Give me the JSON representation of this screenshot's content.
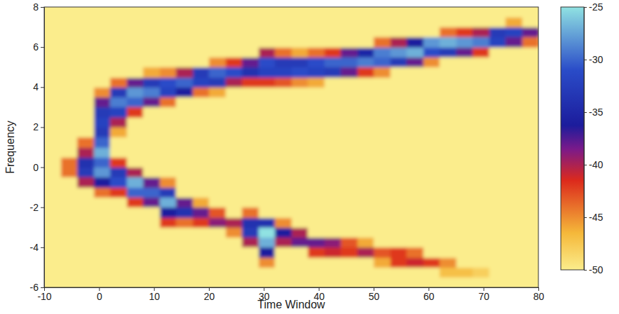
{
  "chart_data": {
    "type": "heatmap",
    "xlabel": "Time Window",
    "ylabel": "Frequency",
    "x": [
      -8.5,
      -5.5,
      -2.5,
      0.5,
      3.5,
      6.5,
      9.5,
      12.5,
      15.5,
      18.5,
      21.5,
      24.5,
      27.5,
      30.5,
      33.5,
      36.5,
      39.5,
      42.5,
      45.5,
      48.5,
      51.5,
      54.5,
      57.5,
      60.5,
      63.5,
      66.5,
      69.5,
      72.5,
      75.5,
      78.5
    ],
    "y": [
      -5.75,
      -5.25,
      -4.75,
      -4.25,
      -3.75,
      -3.25,
      -2.75,
      -2.25,
      -1.75,
      -1.25,
      -0.75,
      -0.25,
      0.25,
      0.75,
      1.25,
      1.75,
      2.25,
      2.75,
      3.25,
      3.75,
      4.25,
      4.75,
      5.25,
      5.75,
      6.25,
      6.75,
      7.25,
      7.75
    ],
    "z": [
      [
        -50,
        -50,
        -50,
        -50,
        -50,
        -50,
        -50,
        -50,
        -50,
        -50,
        -50,
        -50,
        -50,
        -50,
        -50,
        -50,
        -50,
        -50,
        -50,
        -50,
        -50,
        -50,
        -50,
        -50,
        -50,
        -50,
        -50,
        -50,
        -50,
        -50
      ],
      [
        -50,
        -50,
        -50,
        -50,
        -50,
        -50,
        -50,
        -50,
        -50,
        -50,
        -50,
        -50,
        -50,
        -50,
        -50,
        -50,
        -50,
        -50,
        -50,
        -50,
        -50,
        -50,
        -50,
        -50,
        -47,
        -47,
        -48,
        -50,
        -50,
        -50
      ],
      [
        -50,
        -50,
        -50,
        -50,
        -50,
        -50,
        -50,
        -50,
        -50,
        -50,
        -50,
        -50,
        -50,
        -45,
        -50,
        -50,
        -50,
        -50,
        -50,
        -50,
        -46,
        -42,
        -41,
        -42,
        -45,
        -50,
        -50,
        -50,
        -50,
        -50
      ],
      [
        -50,
        -50,
        -50,
        -50,
        -50,
        -50,
        -50,
        -50,
        -50,
        -50,
        -50,
        -50,
        -50,
        -36,
        -50,
        -50,
        -42,
        -41,
        -42,
        -40,
        -43,
        -42,
        -44,
        -50,
        -50,
        -50,
        -50,
        -50,
        -50,
        -50
      ],
      [
        -50,
        -50,
        -50,
        -50,
        -50,
        -50,
        -50,
        -50,
        -50,
        -50,
        -50,
        -50,
        -40,
        -27,
        -40,
        -38,
        -38,
        -39,
        -43,
        -46,
        -50,
        -50,
        -50,
        -50,
        -50,
        -50,
        -50,
        -50,
        -50,
        -50
      ],
      [
        -50,
        -50,
        -50,
        -50,
        -50,
        -50,
        -50,
        -50,
        -50,
        -50,
        -50,
        -45,
        -33,
        -25,
        -36,
        -40,
        -50,
        -50,
        -50,
        -50,
        -50,
        -50,
        -50,
        -50,
        -50,
        -50,
        -50,
        -50,
        -50,
        -50
      ],
      [
        -50,
        -50,
        -50,
        -50,
        -50,
        -50,
        -50,
        -42,
        -44,
        -42,
        -39,
        -40,
        -34,
        -34,
        -45,
        -50,
        -50,
        -50,
        -50,
        -50,
        -50,
        -50,
        -50,
        -50,
        -50,
        -50,
        -50,
        -50,
        -50,
        -50
      ],
      [
        -50,
        -50,
        -50,
        -50,
        -50,
        -50,
        -50,
        -36,
        -34,
        -38,
        -43,
        -50,
        -44,
        -50,
        -50,
        -50,
        -50,
        -50,
        -50,
        -50,
        -50,
        -50,
        -50,
        -50,
        -50,
        -50,
        -50,
        -50,
        -50,
        -50
      ],
      [
        -50,
        -50,
        -50,
        -50,
        -50,
        -42,
        -38,
        -27,
        -38,
        -46,
        -50,
        -50,
        -50,
        -50,
        -50,
        -50,
        -50,
        -50,
        -50,
        -50,
        -50,
        -50,
        -50,
        -50,
        -50,
        -50,
        -50,
        -50,
        -50,
        -50
      ],
      [
        -50,
        -50,
        -50,
        -44,
        -42,
        -30,
        -30,
        -33,
        -50,
        -50,
        -50,
        -50,
        -50,
        -50,
        -50,
        -50,
        -50,
        -50,
        -50,
        -50,
        -50,
        -50,
        -50,
        -50,
        -50,
        -50,
        -50,
        -50,
        -50,
        -50
      ],
      [
        -50,
        -50,
        -40,
        -36,
        -31,
        -27,
        -38,
        -45,
        -50,
        -50,
        -50,
        -50,
        -50,
        -50,
        -50,
        -50,
        -50,
        -50,
        -50,
        -50,
        -50,
        -50,
        -50,
        -50,
        -50,
        -50,
        -50,
        -50,
        -50,
        -50
      ],
      [
        -50,
        -44,
        -33,
        -28,
        -33,
        -40,
        -50,
        -50,
        -50,
        -50,
        -50,
        -50,
        -50,
        -50,
        -50,
        -50,
        -50,
        -50,
        -50,
        -50,
        -50,
        -50,
        -50,
        -50,
        -50,
        -50,
        -50,
        -50,
        -50,
        -50
      ],
      [
        -50,
        -44,
        -34,
        -30,
        -42,
        -50,
        -50,
        -50,
        -50,
        -50,
        -50,
        -50,
        -50,
        -50,
        -50,
        -50,
        -50,
        -50,
        -50,
        -50,
        -50,
        -50,
        -50,
        -50,
        -50,
        -50,
        -50,
        -50,
        -50,
        -50
      ],
      [
        -50,
        -50,
        -40,
        -27,
        -50,
        -50,
        -50,
        -50,
        -50,
        -50,
        -50,
        -50,
        -50,
        -50,
        -50,
        -50,
        -50,
        -50,
        -50,
        -50,
        -50,
        -50,
        -50,
        -50,
        -50,
        -50,
        -50,
        -50,
        -50,
        -50
      ],
      [
        -50,
        -50,
        -44,
        -30,
        -50,
        -50,
        -50,
        -50,
        -50,
        -50,
        -50,
        -50,
        -50,
        -50,
        -50,
        -50,
        -50,
        -50,
        -50,
        -50,
        -50,
        -50,
        -50,
        -50,
        -50,
        -50,
        -50,
        -50,
        -50,
        -50
      ],
      [
        -50,
        -50,
        -50,
        -33,
        -46,
        -50,
        -50,
        -50,
        -50,
        -50,
        -50,
        -50,
        -50,
        -50,
        -50,
        -50,
        -50,
        -50,
        -50,
        -50,
        -50,
        -50,
        -50,
        -50,
        -50,
        -50,
        -50,
        -50,
        -50,
        -50
      ],
      [
        -50,
        -50,
        -50,
        -32,
        -40,
        -50,
        -50,
        -50,
        -50,
        -50,
        -50,
        -50,
        -50,
        -50,
        -50,
        -50,
        -50,
        -50,
        -50,
        -50,
        -50,
        -50,
        -50,
        -50,
        -50,
        -50,
        -50,
        -50,
        -50,
        -50
      ],
      [
        -50,
        -50,
        -50,
        -33,
        -32,
        -42,
        -50,
        -50,
        -50,
        -50,
        -50,
        -50,
        -50,
        -50,
        -50,
        -50,
        -50,
        -50,
        -50,
        -50,
        -50,
        -50,
        -50,
        -50,
        -50,
        -50,
        -50,
        -50,
        -50,
        -50
      ],
      [
        -50,
        -50,
        -50,
        -38,
        -29,
        -30,
        -38,
        -44,
        -50,
        -50,
        -50,
        -50,
        -50,
        -50,
        -50,
        -50,
        -50,
        -50,
        -50,
        -50,
        -50,
        -50,
        -50,
        -50,
        -50,
        -50,
        -50,
        -50,
        -50,
        -50
      ],
      [
        -50,
        -50,
        -50,
        -45,
        -33,
        -28,
        -29,
        -32,
        -36,
        -44,
        -46,
        -50,
        -50,
        -50,
        -50,
        -50,
        -50,
        -50,
        -50,
        -50,
        -50,
        -50,
        -50,
        -50,
        -50,
        -50,
        -50,
        -50,
        -50,
        -50
      ],
      [
        -50,
        -50,
        -50,
        -50,
        -44,
        -38,
        -33,
        -31,
        -30,
        -32,
        -33,
        -40,
        -42,
        -42,
        -43,
        -45,
        -46,
        -50,
        -50,
        -50,
        -50,
        -50,
        -50,
        -50,
        -50,
        -50,
        -50,
        -50,
        -50,
        -50
      ],
      [
        -50,
        -50,
        -50,
        -50,
        -50,
        -50,
        -46,
        -45,
        -40,
        -33,
        -30,
        -31,
        -34,
        -32,
        -32,
        -31,
        -32,
        -33,
        -38,
        -42,
        -45,
        -50,
        -50,
        -50,
        -50,
        -50,
        -50,
        -50,
        -50,
        -50
      ],
      [
        -50,
        -50,
        -50,
        -50,
        -50,
        -50,
        -50,
        -50,
        -50,
        -50,
        -45,
        -42,
        -38,
        -31,
        -33,
        -33,
        -31,
        -30,
        -30,
        -29,
        -30,
        -33,
        -38,
        -45,
        -50,
        -50,
        -50,
        -50,
        -50,
        -50
      ],
      [
        -50,
        -50,
        -50,
        -50,
        -50,
        -50,
        -50,
        -50,
        -50,
        -50,
        -50,
        -50,
        -50,
        -40,
        -44,
        -46,
        -44,
        -42,
        -38,
        -35,
        -29,
        -28,
        -27,
        -31,
        -33,
        -38,
        -42,
        -50,
        -50,
        -50
      ],
      [
        -50,
        -50,
        -50,
        -50,
        -50,
        -50,
        -50,
        -50,
        -50,
        -50,
        -50,
        -50,
        -50,
        -50,
        -50,
        -50,
        -50,
        -50,
        -50,
        -50,
        -44,
        -40,
        -36,
        -28,
        -27,
        -28,
        -29,
        -32,
        -38,
        -44
      ],
      [
        -50,
        -50,
        -50,
        -50,
        -50,
        -50,
        -50,
        -50,
        -50,
        -50,
        -50,
        -50,
        -50,
        -50,
        -50,
        -50,
        -50,
        -50,
        -50,
        -50,
        -50,
        -50,
        -50,
        -50,
        -44,
        -42,
        -40,
        -33,
        -32,
        -38
      ],
      [
        -50,
        -50,
        -50,
        -50,
        -50,
        -50,
        -50,
        -50,
        -50,
        -50,
        -50,
        -50,
        -50,
        -50,
        -50,
        -50,
        -50,
        -50,
        -50,
        -50,
        -50,
        -50,
        -50,
        -50,
        -50,
        -50,
        -50,
        -50,
        -46,
        -50
      ],
      [
        -50,
        -50,
        -50,
        -50,
        -50,
        -50,
        -50,
        -50,
        -50,
        -50,
        -50,
        -50,
        -50,
        -50,
        -50,
        -50,
        -50,
        -50,
        -50,
        -50,
        -50,
        -50,
        -50,
        -50,
        -50,
        -50,
        -50,
        -50,
        -50,
        -50
      ]
    ],
    "xlim": [
      -10,
      80
    ],
    "xticks": [
      -10,
      0,
      10,
      20,
      30,
      40,
      50,
      60,
      70,
      80
    ],
    "ylim": [
      -6,
      8
    ],
    "yticks": [
      -6,
      -4,
      -2,
      0,
      2,
      4,
      6,
      8
    ],
    "zlim": [
      -50,
      -25
    ],
    "zticks": [
      -50,
      -45,
      -40,
      -35,
      -30,
      -25
    ]
  }
}
